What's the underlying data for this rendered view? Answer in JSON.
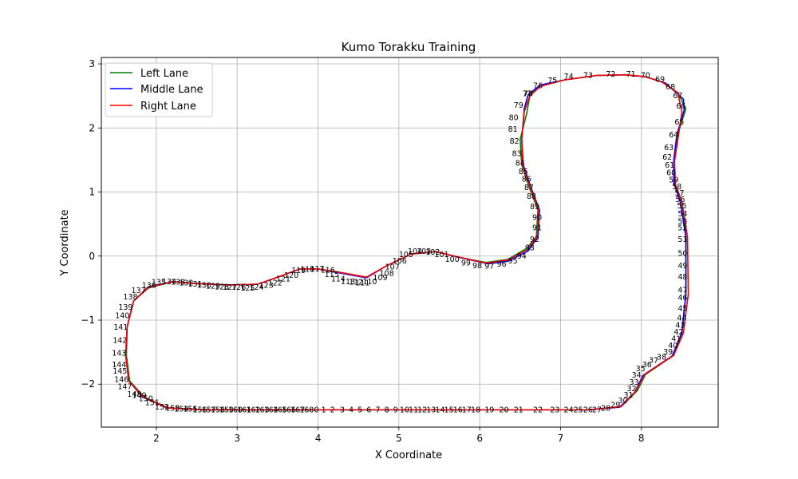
{
  "chart_data": {
    "type": "line",
    "title": "Kumo Torakku Training",
    "xlabel": "X Coordinate",
    "ylabel": "Y Coordinate",
    "xlim": [
      1.32,
      8.95
    ],
    "ylim": [
      -2.67,
      3.1
    ],
    "xticks": [
      2,
      3,
      4,
      5,
      6,
      7,
      8
    ],
    "yticks": [
      -2,
      -1,
      0,
      1,
      2,
      3
    ],
    "grid": true,
    "legend_position": "top-left",
    "series": [
      {
        "name": "Left Lane",
        "color": "#008000",
        "x": [
          3.9,
          4.5,
          5.5,
          6.5,
          7.35,
          7.75,
          7.95,
          8.05,
          8.4,
          8.5,
          8.55,
          8.55,
          8.5,
          8.42,
          8.4,
          8.45,
          8.55,
          8.45,
          8.25,
          8.05,
          7.8,
          7.45,
          7.05,
          6.75,
          6.62,
          6.58,
          6.5,
          6.52,
          6.62,
          6.72,
          6.7,
          6.58,
          6.35,
          6.08,
          5.75,
          5.45,
          5.15,
          4.85,
          4.6,
          4.25,
          4.0,
          3.78,
          3.5,
          3.25,
          2.9,
          2.5,
          2.2,
          1.9,
          1.72,
          1.64,
          1.63,
          1.67,
          1.85,
          2.15,
          2.6,
          3.3,
          3.9
        ],
        "y": [
          -2.4,
          -2.4,
          -2.4,
          -2.4,
          -2.4,
          -2.35,
          -2.1,
          -1.85,
          -1.55,
          -1.2,
          -0.6,
          0.3,
          0.85,
          1.1,
          1.45,
          1.9,
          2.3,
          2.55,
          2.72,
          2.8,
          2.83,
          2.82,
          2.75,
          2.67,
          2.5,
          2.22,
          1.82,
          1.42,
          1.05,
          0.72,
          0.3,
          0.12,
          -0.05,
          -0.1,
          -0.02,
          0.07,
          0.03,
          -0.15,
          -0.33,
          -0.25,
          -0.2,
          -0.2,
          -0.33,
          -0.44,
          -0.45,
          -0.43,
          -0.4,
          -0.5,
          -0.7,
          -1.1,
          -1.55,
          -1.95,
          -2.2,
          -2.37,
          -2.4,
          -2.4,
          -2.4
        ]
      },
      {
        "name": "Middle Lane",
        "color": "#0000ff",
        "x": [
          3.9,
          4.5,
          5.5,
          6.5,
          7.35,
          7.73,
          7.92,
          8.02,
          8.38,
          8.5,
          8.55,
          8.55,
          8.48,
          8.4,
          8.4,
          8.44,
          8.53,
          8.52,
          8.3,
          8.05,
          7.8,
          7.45,
          7.05,
          6.75,
          6.6,
          6.55,
          6.52,
          6.54,
          6.64,
          6.74,
          6.72,
          6.6,
          6.35,
          6.1,
          5.78,
          5.45,
          5.15,
          4.85,
          4.6,
          4.25,
          4.0,
          3.78,
          3.5,
          3.25,
          2.9,
          2.5,
          2.2,
          1.9,
          1.72,
          1.64,
          1.62,
          1.66,
          1.83,
          2.13,
          2.6,
          3.3,
          3.9
        ],
        "y": [
          -2.4,
          -2.4,
          -2.4,
          -2.4,
          -2.4,
          -2.36,
          -2.12,
          -1.86,
          -1.56,
          -1.2,
          -0.6,
          0.3,
          0.85,
          1.15,
          1.5,
          1.9,
          2.28,
          2.45,
          2.7,
          2.8,
          2.83,
          2.82,
          2.75,
          2.67,
          2.52,
          2.3,
          1.82,
          1.42,
          1.05,
          0.72,
          0.3,
          0.08,
          -0.08,
          -0.12,
          -0.03,
          0.07,
          0.03,
          -0.15,
          -0.34,
          -0.26,
          -0.2,
          -0.2,
          -0.33,
          -0.44,
          -0.45,
          -0.43,
          -0.4,
          -0.48,
          -0.7,
          -1.1,
          -1.55,
          -1.95,
          -2.2,
          -2.37,
          -2.4,
          -2.4,
          -2.4
        ]
      },
      {
        "name": "Right Lane",
        "color": "#ff0000",
        "x": [
          3.9,
          4.5,
          5.5,
          6.5,
          7.35,
          7.75,
          7.93,
          8.04,
          8.4,
          8.52,
          8.58,
          8.57,
          8.5,
          8.42,
          8.41,
          8.46,
          8.5,
          8.45,
          8.25,
          8.05,
          7.8,
          7.45,
          7.05,
          6.75,
          6.62,
          6.55,
          6.52,
          6.53,
          6.63,
          6.73,
          6.71,
          6.59,
          6.35,
          6.08,
          5.76,
          5.45,
          5.15,
          4.85,
          4.6,
          4.25,
          4.0,
          3.78,
          3.5,
          3.25,
          2.9,
          2.5,
          2.2,
          1.9,
          1.72,
          1.64,
          1.62,
          1.66,
          1.84,
          2.14,
          2.6,
          3.3,
          3.9
        ],
        "y": [
          -2.4,
          -2.4,
          -2.4,
          -2.4,
          -2.4,
          -2.35,
          -2.11,
          -1.85,
          -1.55,
          -1.2,
          -0.6,
          0.3,
          0.85,
          1.12,
          1.48,
          1.9,
          2.25,
          2.55,
          2.72,
          2.8,
          2.83,
          2.82,
          2.75,
          2.65,
          2.5,
          2.25,
          1.82,
          1.42,
          1.05,
          0.72,
          0.3,
          0.1,
          -0.06,
          -0.11,
          -0.02,
          0.07,
          0.03,
          -0.15,
          -0.33,
          -0.25,
          -0.2,
          -0.2,
          -0.33,
          -0.44,
          -0.45,
          -0.43,
          -0.4,
          -0.49,
          -0.7,
          -1.1,
          -1.55,
          -1.95,
          -2.2,
          -2.37,
          -2.4,
          -2.4,
          -2.4
        ]
      }
    ],
    "waypoint_labels": [
      {
        "label": "0",
        "x": 3.98,
        "y": -2.4
      },
      {
        "label": "1",
        "x": 4.07,
        "y": -2.4
      },
      {
        "label": "2",
        "x": 4.18,
        "y": -2.4
      },
      {
        "label": "3",
        "x": 4.3,
        "y": -2.4
      },
      {
        "label": "4",
        "x": 4.41,
        "y": -2.4
      },
      {
        "label": "5",
        "x": 4.52,
        "y": -2.4
      },
      {
        "label": "6",
        "x": 4.63,
        "y": -2.4
      },
      {
        "label": "7",
        "x": 4.74,
        "y": -2.4
      },
      {
        "label": "8",
        "x": 4.85,
        "y": -2.4
      },
      {
        "label": "9",
        "x": 4.96,
        "y": -2.4
      },
      {
        "label": "10",
        "x": 5.07,
        "y": -2.4
      },
      {
        "label": "11",
        "x": 5.18,
        "y": -2.4
      },
      {
        "label": "12",
        "x": 5.29,
        "y": -2.4
      },
      {
        "label": "13",
        "x": 5.4,
        "y": -2.4
      },
      {
        "label": "14",
        "x": 5.51,
        "y": -2.4
      },
      {
        "label": "15",
        "x": 5.62,
        "y": -2.4
      },
      {
        "label": "16",
        "x": 5.73,
        "y": -2.4
      },
      {
        "label": "17",
        "x": 5.84,
        "y": -2.4
      },
      {
        "label": "18",
        "x": 5.95,
        "y": -2.4
      },
      {
        "label": "19",
        "x": 6.12,
        "y": -2.4
      },
      {
        "label": "20",
        "x": 6.3,
        "y": -2.4
      },
      {
        "label": "21",
        "x": 6.48,
        "y": -2.4
      },
      {
        "label": "22",
        "x": 6.72,
        "y": -2.4
      },
      {
        "label": "23",
        "x": 6.93,
        "y": -2.4
      },
      {
        "label": "24",
        "x": 7.1,
        "y": -2.4
      },
      {
        "label": "25",
        "x": 7.22,
        "y": -2.4
      },
      {
        "label": "26",
        "x": 7.34,
        "y": -2.4
      },
      {
        "label": "27",
        "x": 7.45,
        "y": -2.4
      },
      {
        "label": "28",
        "x": 7.56,
        "y": -2.38
      },
      {
        "label": "29",
        "x": 7.68,
        "y": -2.33
      },
      {
        "label": "30",
        "x": 7.77,
        "y": -2.26
      },
      {
        "label": "31",
        "x": 7.84,
        "y": -2.17
      },
      {
        "label": "32",
        "x": 7.88,
        "y": -2.07
      },
      {
        "label": "33",
        "x": 7.91,
        "y": -1.97
      },
      {
        "label": "34",
        "x": 7.94,
        "y": -1.86
      },
      {
        "label": "35",
        "x": 7.99,
        "y": -1.76
      },
      {
        "label": "36",
        "x": 8.07,
        "y": -1.7
      },
      {
        "label": "37",
        "x": 8.15,
        "y": -1.63
      },
      {
        "label": "38",
        "x": 8.25,
        "y": -1.58
      },
      {
        "label": "39",
        "x": 8.33,
        "y": -1.5
      },
      {
        "label": "40",
        "x": 8.39,
        "y": -1.4
      },
      {
        "label": "41",
        "x": 8.43,
        "y": -1.29
      },
      {
        "label": "42",
        "x": 8.46,
        "y": -1.19
      },
      {
        "label": "43",
        "x": 8.48,
        "y": -1.08
      },
      {
        "label": "44",
        "x": 8.5,
        "y": -0.97
      },
      {
        "label": "45",
        "x": 8.51,
        "y": -0.82
      },
      {
        "label": "46",
        "x": 8.51,
        "y": -0.65
      },
      {
        "label": "47",
        "x": 8.51,
        "y": -0.53
      },
      {
        "label": "48",
        "x": 8.51,
        "y": -0.33
      },
      {
        "label": "49",
        "x": 8.51,
        "y": -0.15
      },
      {
        "label": "50",
        "x": 8.51,
        "y": 0.04
      },
      {
        "label": "51",
        "x": 8.51,
        "y": 0.26
      },
      {
        "label": "52",
        "x": 8.51,
        "y": 0.44
      },
      {
        "label": "53",
        "x": 8.51,
        "y": 0.54
      },
      {
        "label": "54",
        "x": 8.51,
        "y": 0.66
      },
      {
        "label": "55",
        "x": 8.5,
        "y": 0.78
      },
      {
        "label": "56",
        "x": 8.48,
        "y": 0.88
      },
      {
        "label": "57",
        "x": 8.47,
        "y": 0.98
      },
      {
        "label": "58",
        "x": 8.44,
        "y": 1.08
      },
      {
        "label": "59",
        "x": 8.4,
        "y": 1.19
      },
      {
        "label": "60",
        "x": 8.37,
        "y": 1.3
      },
      {
        "label": "61",
        "x": 8.35,
        "y": 1.42
      },
      {
        "label": "62",
        "x": 8.32,
        "y": 1.54
      },
      {
        "label": "63",
        "x": 8.34,
        "y": 1.69
      },
      {
        "label": "64",
        "x": 8.4,
        "y": 1.89
      },
      {
        "label": "65",
        "x": 8.47,
        "y": 2.09
      },
      {
        "label": "66",
        "x": 8.49,
        "y": 2.34
      },
      {
        "label": "67",
        "x": 8.45,
        "y": 2.5
      },
      {
        "label": "68",
        "x": 8.36,
        "y": 2.64
      },
      {
        "label": "69",
        "x": 8.23,
        "y": 2.76
      },
      {
        "label": "70",
        "x": 8.05,
        "y": 2.82
      },
      {
        "label": "71",
        "x": 7.87,
        "y": 2.84
      },
      {
        "label": "72",
        "x": 7.62,
        "y": 2.84
      },
      {
        "label": "73",
        "x": 7.34,
        "y": 2.82
      },
      {
        "label": "74",
        "x": 7.1,
        "y": 2.8
      },
      {
        "label": "75",
        "x": 6.9,
        "y": 2.74
      },
      {
        "label": "76",
        "x": 6.72,
        "y": 2.66
      },
      {
        "label": "77",
        "x": 6.59,
        "y": 2.53
      },
      {
        "label": "78",
        "x": 6.6,
        "y": 2.53
      },
      {
        "label": "79",
        "x": 6.48,
        "y": 2.35
      },
      {
        "label": "80",
        "x": 6.42,
        "y": 2.16
      },
      {
        "label": "81",
        "x": 6.41,
        "y": 1.98
      },
      {
        "label": "82",
        "x": 6.43,
        "y": 1.79
      },
      {
        "label": "83",
        "x": 6.46,
        "y": 1.6
      },
      {
        "label": "84",
        "x": 6.5,
        "y": 1.45
      },
      {
        "label": "85",
        "x": 6.54,
        "y": 1.32
      },
      {
        "label": "86",
        "x": 6.58,
        "y": 1.2
      },
      {
        "label": "87",
        "x": 6.61,
        "y": 1.07
      },
      {
        "label": "88",
        "x": 6.64,
        "y": 0.93
      },
      {
        "label": "89",
        "x": 6.68,
        "y": 0.77
      },
      {
        "label": "90",
        "x": 6.71,
        "y": 0.6
      },
      {
        "label": "91",
        "x": 6.71,
        "y": 0.44
      },
      {
        "label": "92",
        "x": 6.68,
        "y": 0.26
      },
      {
        "label": "93",
        "x": 6.62,
        "y": 0.13
      },
      {
        "label": "94",
        "x": 6.52,
        "y": 0.0
      },
      {
        "label": "95",
        "x": 6.41,
        "y": -0.08
      },
      {
        "label": "96",
        "x": 6.27,
        "y": -0.13
      },
      {
        "label": "97",
        "x": 6.12,
        "y": -0.16
      },
      {
        "label": "98",
        "x": 5.97,
        "y": -0.15
      },
      {
        "label": "99",
        "x": 5.83,
        "y": -0.11
      },
      {
        "label": "100",
        "x": 5.66,
        "y": -0.05
      },
      {
        "label": "101",
        "x": 5.53,
        "y": 0.02
      },
      {
        "label": "102",
        "x": 5.42,
        "y": 0.06
      },
      {
        "label": "103",
        "x": 5.31,
        "y": 0.07
      },
      {
        "label": "104",
        "x": 5.2,
        "y": 0.07
      },
      {
        "label": "105",
        "x": 5.09,
        "y": 0.02
      },
      {
        "label": "106",
        "x": 5.01,
        "y": -0.08
      },
      {
        "label": "107",
        "x": 4.92,
        "y": -0.17
      },
      {
        "label": "108",
        "x": 4.85,
        "y": -0.27
      },
      {
        "label": "109",
        "x": 4.77,
        "y": -0.34
      },
      {
        "label": "110",
        "x": 4.64,
        "y": -0.4
      },
      {
        "label": "111",
        "x": 4.55,
        "y": -0.42
      },
      {
        "label": "112",
        "x": 4.47,
        "y": -0.41
      },
      {
        "label": "113",
        "x": 4.37,
        "y": -0.4
      },
      {
        "label": "114",
        "x": 4.25,
        "y": -0.36
      },
      {
        "label": "115",
        "x": 4.17,
        "y": -0.29
      },
      {
        "label": "116",
        "x": 4.12,
        "y": -0.22
      },
      {
        "label": "117",
        "x": 3.99,
        "y": -0.2
      },
      {
        "label": "118",
        "x": 3.87,
        "y": -0.21
      },
      {
        "label": "119",
        "x": 3.76,
        "y": -0.23
      },
      {
        "label": "120",
        "x": 3.67,
        "y": -0.3
      },
      {
        "label": "121",
        "x": 3.57,
        "y": -0.36
      },
      {
        "label": "122",
        "x": 3.47,
        "y": -0.42
      },
      {
        "label": "123",
        "x": 3.36,
        "y": -0.46
      },
      {
        "label": "124",
        "x": 3.24,
        "y": -0.49
      },
      {
        "label": "125",
        "x": 3.13,
        "y": -0.5
      },
      {
        "label": "126",
        "x": 3.02,
        "y": -0.49
      },
      {
        "label": "127",
        "x": 2.91,
        "y": -0.49
      },
      {
        "label": "128",
        "x": 2.81,
        "y": -0.48
      },
      {
        "label": "129",
        "x": 2.7,
        "y": -0.47
      },
      {
        "label": "130",
        "x": 2.59,
        "y": -0.46
      },
      {
        "label": "131",
        "x": 2.48,
        "y": -0.44
      },
      {
        "label": "132",
        "x": 2.37,
        "y": -0.42
      },
      {
        "label": "133",
        "x": 2.27,
        "y": -0.41
      },
      {
        "label": "134",
        "x": 2.16,
        "y": -0.4
      },
      {
        "label": "135",
        "x": 2.03,
        "y": -0.41
      },
      {
        "label": "136",
        "x": 1.91,
        "y": -0.46
      },
      {
        "label": "137",
        "x": 1.78,
        "y": -0.54
      },
      {
        "label": "138",
        "x": 1.68,
        "y": -0.64
      },
      {
        "label": "139",
        "x": 1.62,
        "y": -0.8
      },
      {
        "label": "140",
        "x": 1.58,
        "y": -0.93
      },
      {
        "label": "141",
        "x": 1.56,
        "y": -1.11
      },
      {
        "label": "142",
        "x": 1.55,
        "y": -1.32
      },
      {
        "label": "143",
        "x": 1.54,
        "y": -1.52
      },
      {
        "label": "144",
        "x": 1.54,
        "y": -1.7
      },
      {
        "label": "145",
        "x": 1.55,
        "y": -1.8
      },
      {
        "label": "146",
        "x": 1.57,
        "y": -1.93
      },
      {
        "label": "147",
        "x": 1.61,
        "y": -2.04
      },
      {
        "label": "148",
        "x": 1.73,
        "y": -2.16
      },
      {
        "label": "149",
        "x": 1.79,
        "y": -2.18
      },
      {
        "label": "150",
        "x": 1.87,
        "y": -2.23
      },
      {
        "label": "151",
        "x": 1.95,
        "y": -2.29
      },
      {
        "label": "152",
        "x": 2.07,
        "y": -2.36
      },
      {
        "label": "153",
        "x": 2.2,
        "y": -2.38
      },
      {
        "label": "154",
        "x": 2.31,
        "y": -2.39
      },
      {
        "label": "155",
        "x": 2.42,
        "y": -2.39
      },
      {
        "label": "156",
        "x": 2.54,
        "y": -2.4
      },
      {
        "label": "157",
        "x": 2.65,
        "y": -2.4
      },
      {
        "label": "158",
        "x": 2.76,
        "y": -2.4
      },
      {
        "label": "159",
        "x": 2.87,
        "y": -2.4
      },
      {
        "label": "160",
        "x": 2.98,
        "y": -2.4
      },
      {
        "label": "161",
        "x": 3.09,
        "y": -2.4
      },
      {
        "label": "162",
        "x": 3.2,
        "y": -2.4
      },
      {
        "label": "163",
        "x": 3.31,
        "y": -2.4
      },
      {
        "label": "164",
        "x": 3.42,
        "y": -2.4
      },
      {
        "label": "165",
        "x": 3.53,
        "y": -2.4
      },
      {
        "label": "166",
        "x": 3.64,
        "y": -2.4
      },
      {
        "label": "167",
        "x": 3.75,
        "y": -2.4
      },
      {
        "label": "168",
        "x": 3.86,
        "y": -2.4
      }
    ]
  }
}
